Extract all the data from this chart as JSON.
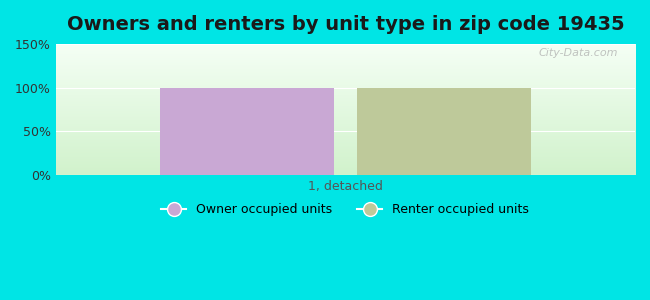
{
  "title": "Owners and renters by unit type in zip code 19435",
  "categories": [
    "1, detached"
  ],
  "owner_values": [
    100
  ],
  "renter_values": [
    100
  ],
  "owner_color": "#c9a8d4",
  "renter_color": "#bec99a",
  "ylim": [
    0,
    150
  ],
  "yticks": [
    0,
    50,
    100,
    150
  ],
  "ytick_labels": [
    "0%",
    "50%",
    "100%",
    "150%"
  ],
  "background_outer": "#00e5e5",
  "bar_width": 0.3,
  "legend_owner": "Owner occupied units",
  "legend_renter": "Renter occupied units",
  "watermark": "City-Data.com",
  "title_fontsize": 14,
  "xlabel_fontsize": 9,
  "ylabel_fontsize": 9
}
